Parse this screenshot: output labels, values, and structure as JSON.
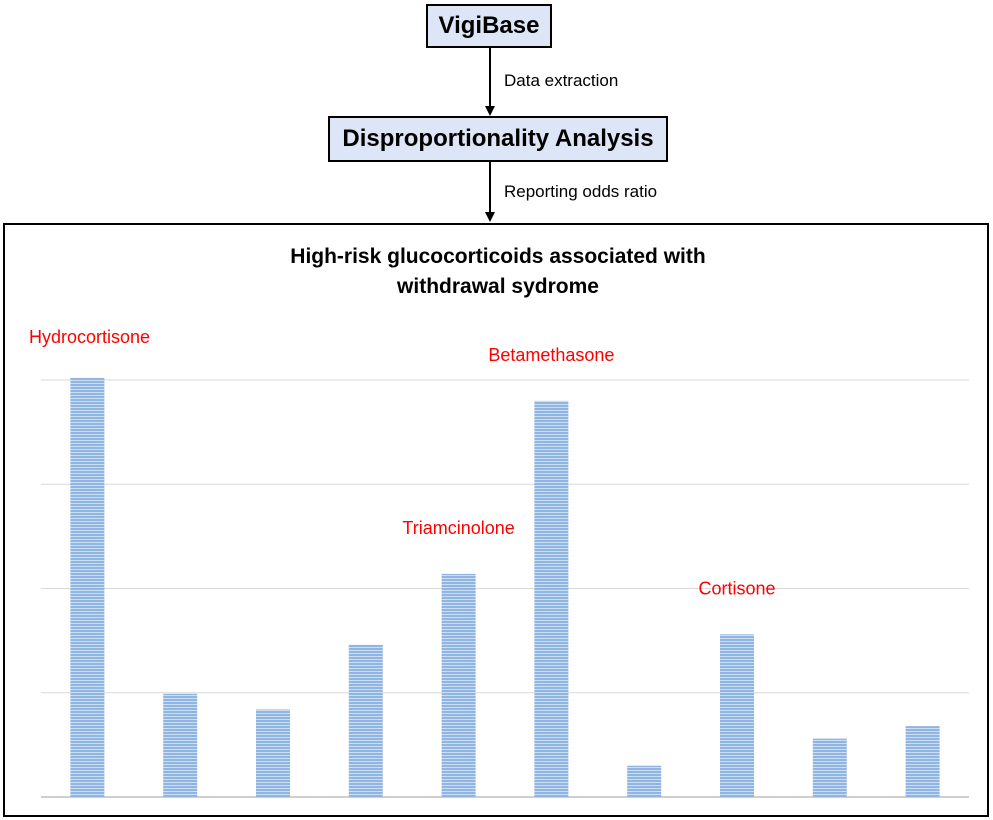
{
  "flow": {
    "source": "VigiBase",
    "step1_label": "Data extraction",
    "analysis": "Disproportionality Analysis",
    "step2_label": "Reporting odds ratio"
  },
  "panel": {
    "title_line1": "High-risk glucocorticoids associated with",
    "title_line2": "withdrawal sydrome"
  },
  "colors": {
    "bar": "#8fb5e0",
    "bar_stripe": "#ffffff",
    "drug_label": "#ff0000",
    "box_fill": "#dde6f7"
  },
  "chart_data": {
    "type": "bar",
    "title": "",
    "xlabel": "",
    "ylabel": "",
    "ylim": [
      0,
      4
    ],
    "grid": true,
    "gridlines": [
      1,
      2,
      3,
      4
    ],
    "values": [
      4.02,
      0.99,
      0.84,
      1.46,
      2.14,
      3.8,
      0.3,
      1.56,
      0.56,
      0.68
    ],
    "annotations": [
      {
        "text": "Hydrocortisone",
        "bar_index": 0
      },
      {
        "text": "Betamethasone",
        "bar_index": 5
      },
      {
        "text": "Triamcinolone",
        "bar_index": 4
      },
      {
        "text": "Cortisone",
        "bar_index": 7
      }
    ]
  }
}
